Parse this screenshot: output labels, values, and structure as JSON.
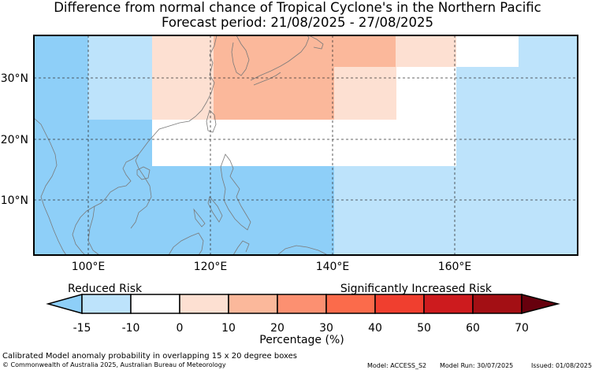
{
  "title_line1": "Difference from normal chance of Tropical Cyclone's in the Northern Pacific",
  "title_line2": "Forecast period: 21/08/2025 - 27/08/2025",
  "map": {
    "lon_ticks": [
      "100°E",
      "120°E",
      "140°E",
      "160°E"
    ],
    "lat_ticks": [
      "30°N",
      "20°N",
      "10°N"
    ]
  },
  "colorbar": {
    "label_left": "Reduced Risk",
    "label_right": "Significantly Increased Risk",
    "ticks": [
      "-15",
      "-10",
      "0",
      "10",
      "20",
      "30",
      "40",
      "50",
      "60",
      "70"
    ],
    "xlabel": "Percentage (%)",
    "colors": {
      "under": "#8ecff8",
      "bins": [
        "#bde3fb",
        "#ffffff",
        "#fde0d2",
        "#fbb89b",
        "#fc9071",
        "#fb6b4b",
        "#f03f2f",
        "#cd1b1e",
        "#a30f14"
      ],
      "over": "#67000d"
    }
  },
  "anomaly_colors": {
    "very_low": "#8ecff8",
    "low": "#bde3fb",
    "neutral": "#ffffff",
    "slight": "#fde0d2",
    "moderate": "#fbb89b"
  },
  "footer": {
    "line1": "Calibrated Model anomaly probability in overlapping 15 x 20 degree boxes",
    "line2": "© Commonwealth of Australia 2025, Australian Bureau of Meteorology",
    "model": "Model: ACCESS_S2",
    "run": "Model Run: 30/07/2025",
    "issued": "Issued: 01/08/2025"
  }
}
